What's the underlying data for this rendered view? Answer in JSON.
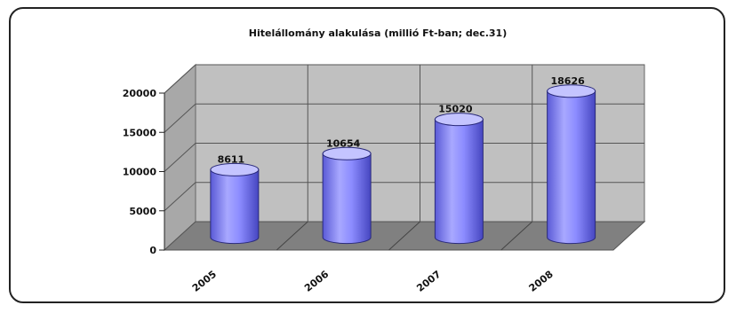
{
  "chart_data": {
    "type": "bar",
    "title": "Hitelállomány alakulása (millió Ft-ban; dec.31)",
    "categories": [
      "2005",
      "2006",
      "2007",
      "2008"
    ],
    "values": [
      8611,
      10654,
      15020,
      18626
    ],
    "data_labels": [
      "8611",
      "10654",
      "15020",
      "18626"
    ],
    "y_ticks": [
      "0",
      "5000",
      "10000",
      "15000",
      "20000"
    ],
    "ylim": [
      0,
      20000
    ],
    "grid": true,
    "style": "3d-cylinder",
    "colors": {
      "bar_main": "#8c8cff",
      "bar_light": "#c4c4ff",
      "bar_dark": "#5a5ad6",
      "wall": "#c0c0c0",
      "floor": "#808080",
      "grid": "#555555"
    }
  }
}
